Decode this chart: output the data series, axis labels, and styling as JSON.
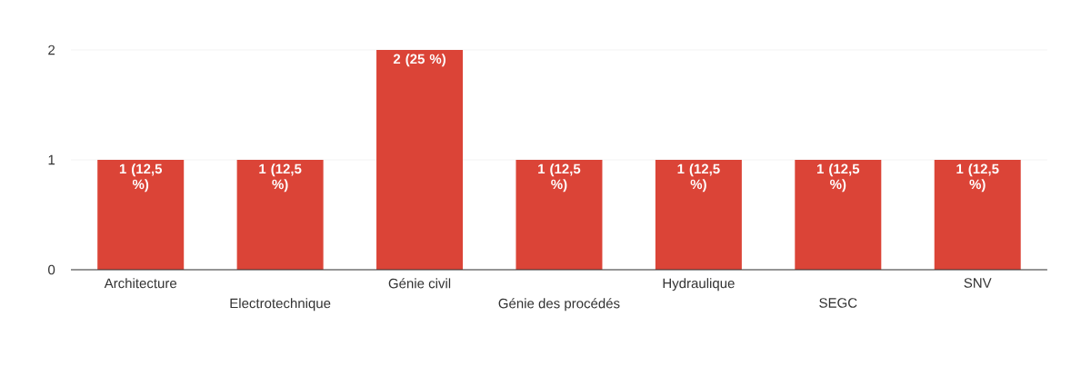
{
  "chart_data": {
    "type": "bar",
    "categories": [
      "Architecture",
      "Electrotechnique",
      "Génie civil",
      "Génie des procédés",
      "Hydraulique",
      "SEGC",
      "SNV"
    ],
    "values": [
      1,
      1,
      2,
      1,
      1,
      1,
      1
    ],
    "value_labels": [
      "1 (12,5 %)",
      "1 (12,5 %)",
      "2 (25 %)",
      "1 (12,5 %)",
      "1 (12,5 %)",
      "1 (12,5 %)",
      "1 (12,5 %)"
    ],
    "color": "#db4437",
    "ylim": [
      0,
      2
    ],
    "yticks": [
      0,
      1,
      2
    ],
    "grid": "y"
  }
}
